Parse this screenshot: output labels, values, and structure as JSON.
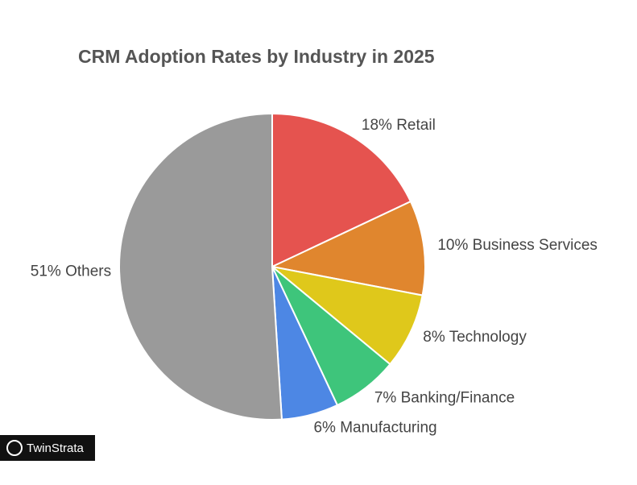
{
  "chart_data": {
    "type": "pie",
    "title": "CRM Adoption Rates by Industry in 2025",
    "values": [
      18,
      10,
      8,
      7,
      6,
      51
    ],
    "value_labels": [
      "18% Retail",
      "10% Business Services",
      "8% Technology",
      "7% Banking/Finance",
      "6% Manufacturing",
      "51% Others"
    ],
    "colors": [
      "#e5534f",
      "#e0862e",
      "#dfc81b",
      "#3ec57b",
      "#4d87e4",
      "#9a9a9a"
    ]
  },
  "watermark": "TwinStrata"
}
